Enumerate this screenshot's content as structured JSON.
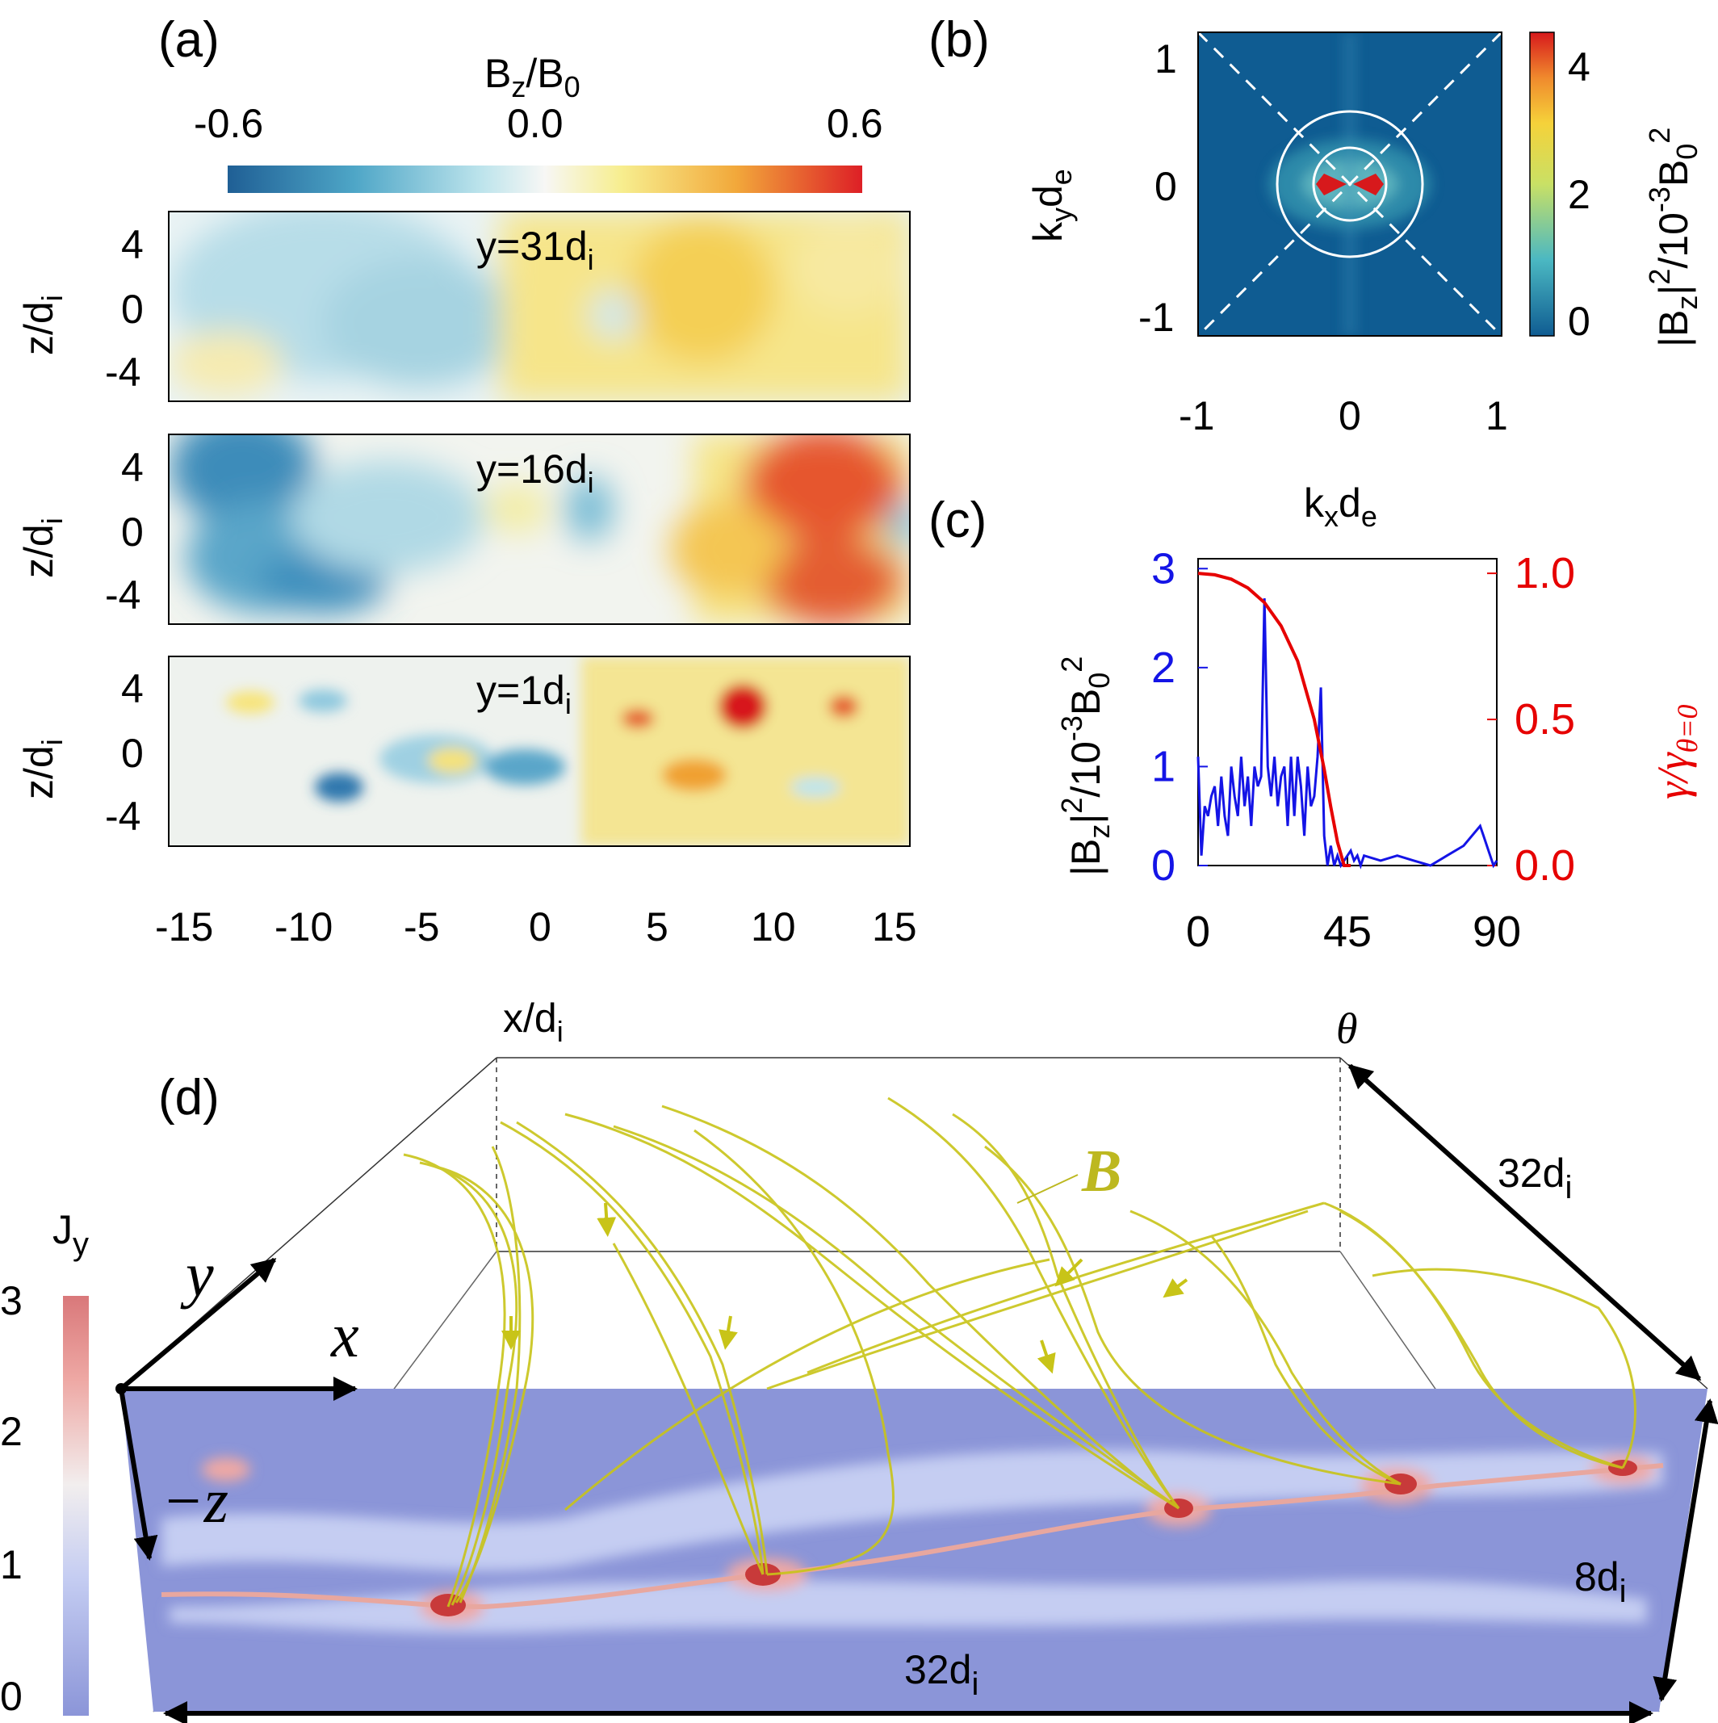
{
  "panel_labels": {
    "a": "(a)",
    "b": "(b)",
    "c": "(c)",
    "d": "(d)"
  },
  "panel_a": {
    "colorbar": {
      "label_main": "B",
      "label_sub1": "z",
      "label_mid": "/B",
      "label_sub2": "0",
      "ticks": [
        "-0.6",
        "0.0",
        "0.6"
      ]
    },
    "slices": [
      {
        "label_main": "y=31d",
        "label_sub": "i"
      },
      {
        "label_main": "y=16d",
        "label_sub": "i"
      },
      {
        "label_main": "y=1d",
        "label_sub": "i"
      }
    ],
    "ylabel_main": "z/d",
    "ylabel_sub": "i",
    "yticks": [
      "4",
      "0",
      "-4"
    ],
    "xticks": [
      "-15",
      "-10",
      "-5",
      "0",
      "5",
      "10",
      "15"
    ],
    "xlabel_main": "x/d",
    "xlabel_sub": "i"
  },
  "panel_b": {
    "yticks": [
      "1",
      "0",
      "-1"
    ],
    "xticks": [
      "-1",
      "0",
      "1"
    ],
    "ylabel_main": "k",
    "ylabel_sub1": "y",
    "ylabel_rest": "d",
    "ylabel_sub2": "e",
    "xlabel_main": "k",
    "xlabel_sub1": "x",
    "xlabel_rest": "d",
    "xlabel_sub2": "e",
    "cbar_ticks": [
      "4",
      "2",
      "0"
    ],
    "cbar_label": "|B_z|^2/10^-3 B_0^2"
  },
  "panel_d": {
    "colorbar_title_main": "J",
    "colorbar_title_sub": "y",
    "colorbar_ticks": [
      "3",
      "2",
      "1",
      "0"
    ],
    "axis_y": "y",
    "axis_x": "x",
    "axis_z": "−z",
    "field_label": "B",
    "dim_top": "32d",
    "dim_side": "8d",
    "dim_bottom": "32d",
    "dim_sub": "i"
  },
  "chart_data": [
    {
      "type": "line",
      "panel": "c",
      "xlabel": "θ",
      "xticks": [
        "0",
        "45",
        "90"
      ],
      "xlim": [
        0,
        90
      ],
      "ylabel_left": "|B_z|^2/10^-3 B_0^2",
      "ylabel_right": "γ/γ_θ=0",
      "yticks_left": [
        "0",
        "1",
        "2",
        "3"
      ],
      "yticks_right": [
        "0.0",
        "0.5",
        "1.0"
      ],
      "ylim_left": [
        0,
        3.1
      ],
      "ylim_right": [
        0,
        1.05
      ],
      "colors": {
        "left": "#1414e6",
        "right": "#e60000"
      },
      "series": [
        {
          "axis": "left",
          "x": [
            0,
            1,
            2,
            3,
            4,
            5,
            6,
            7,
            8,
            9,
            10,
            11,
            12,
            13,
            14,
            15,
            16,
            17,
            18,
            19,
            20,
            21,
            22,
            23,
            24,
            25,
            26,
            27,
            28,
            29,
            30,
            31,
            32,
            33,
            34,
            35,
            36,
            37,
            38,
            39,
            40,
            41,
            42,
            43,
            44,
            45,
            46,
            47,
            48,
            49,
            50,
            55,
            60,
            65,
            70,
            75,
            80,
            85,
            86,
            87,
            88,
            89,
            90
          ],
          "values": [
            1.1,
            0.1,
            0.6,
            0.5,
            0.7,
            0.8,
            0.4,
            0.9,
            0.5,
            0.3,
            1.0,
            0.7,
            0.5,
            1.1,
            0.6,
            0.9,
            0.4,
            1.0,
            0.8,
            0.9,
            2.7,
            1.0,
            0.7,
            1.1,
            0.6,
            0.9,
            1.0,
            0.4,
            1.1,
            0.5,
            1.1,
            0.8,
            0.3,
            1.0,
            0.6,
            0.7,
            1.1,
            1.8,
            0.3,
            0.0,
            0.2,
            0.0,
            0.1,
            0.0,
            0.05,
            0.1,
            0.15,
            0.05,
            0.1,
            0.0,
            0.1,
            0.05,
            0.1,
            0.05,
            0.0,
            0.1,
            0.2,
            0.4,
            0.3,
            0.2,
            0.1,
            0.0,
            0.05
          ]
        },
        {
          "axis": "right",
          "x": [
            0,
            5,
            10,
            15,
            20,
            25,
            30,
            35,
            38,
            40,
            42,
            44,
            46
          ],
          "values": [
            1.0,
            0.995,
            0.98,
            0.95,
            0.9,
            0.82,
            0.7,
            0.5,
            0.33,
            0.2,
            0.08,
            0.0,
            0.0
          ]
        }
      ]
    }
  ]
}
